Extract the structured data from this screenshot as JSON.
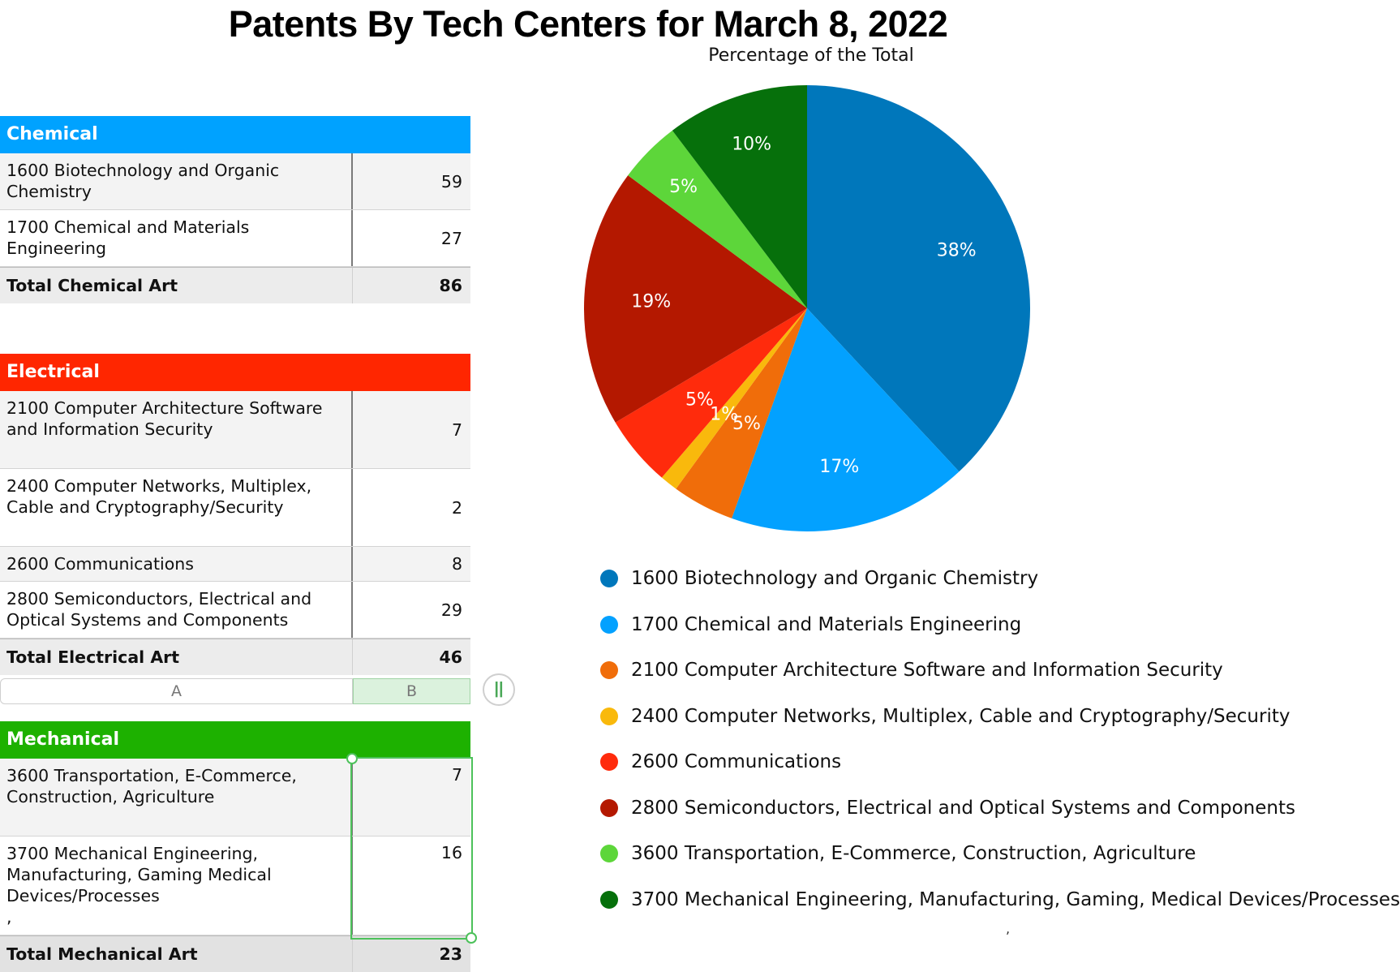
{
  "title": "Patents By Tech Centers for March 8, 2022",
  "chart_data": {
    "type": "pie",
    "title": "Percentage of the Total",
    "categories": [
      "1600 Biotechnology and Organic Chemistry",
      "1700 Chemical and Materials Engineering",
      "2100 Computer Architecture Software and Information Security",
      "2400 Computer Networks, Multiplex, Cable and Cryptography/Security",
      "2600 Communications",
      "2800 Semiconductors, Electrical and Optical Systems and Components",
      "3600 Transportation, E-Commerce, Construction, Agriculture",
      "3700 Mechanical Engineering, Manufacturing, Gaming, Medical Devices/Processes"
    ],
    "values": [
      59,
      27,
      7,
      2,
      8,
      29,
      7,
      16
    ],
    "labels": [
      "38%",
      "17%",
      "5%",
      "1%",
      "5%",
      "19%",
      "5%",
      "10%"
    ],
    "colors": [
      "#0077bb",
      "#03a1ff",
      "#f06d0a",
      "#f9b90c",
      "#ff2b0c",
      "#b41800",
      "#5dd63a",
      "#06700b"
    ],
    "legend_position": "bottom"
  },
  "tables": {
    "column_headers": {
      "a": "A",
      "b": "B"
    },
    "column_handle": "||",
    "chemical": {
      "header": "Chemical",
      "color": "#00a2ff",
      "rows": [
        {
          "name": "1600 Biotechnology and Organic Chemistry",
          "value": "59"
        },
        {
          "name": "1700 Chemical and Materials Engineering",
          "value": "27"
        }
      ],
      "total_label": "Total Chemical Art",
      "total_value": "86"
    },
    "electrical": {
      "header": "Electrical",
      "color": "#ff2600",
      "rows": [
        {
          "name": "2100 Computer Architecture Software and Information Security",
          "value": "7"
        },
        {
          "name": "2400 Computer Networks, Multiplex, Cable and Cryptography/Security",
          "value": "2"
        },
        {
          "name": "2600 Communications",
          "value": "8"
        },
        {
          "name": "2800 Semiconductors, Electrical and Optical Systems and Components",
          "value": "29"
        }
      ],
      "total_label": "Total Electrical Art",
      "total_value": "46"
    },
    "mechanical": {
      "header": "Mechanical",
      "color": "#1db100",
      "rows": [
        {
          "name": "3600 Transportation, E-Commerce, Construction, Agriculture",
          "value": "7"
        },
        {
          "name": "3700 Mechanical Engineering, Manufacturing, Gaming Medical Devices/Processes",
          "value": "16",
          "extra": ","
        }
      ],
      "total_label": "Total Mechanical Art",
      "total_value": "23"
    }
  },
  "stray_mark": ","
}
